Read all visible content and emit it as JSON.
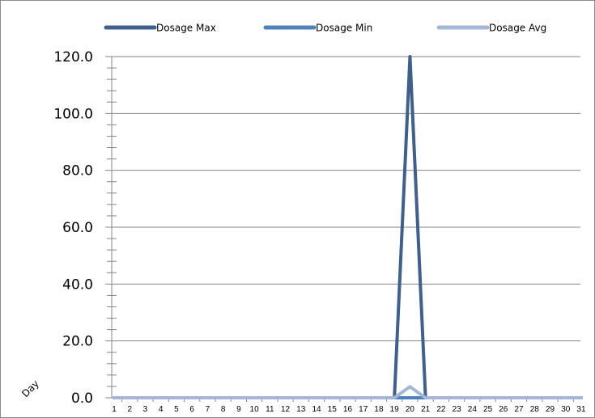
{
  "chart_data": {
    "type": "line",
    "title": "",
    "xlabel": "Day",
    "ylabel": "",
    "x": [
      1,
      2,
      3,
      4,
      5,
      6,
      7,
      8,
      9,
      10,
      11,
      12,
      13,
      14,
      15,
      16,
      17,
      18,
      19,
      20,
      21,
      22,
      23,
      24,
      25,
      26,
      27,
      28,
      29,
      30,
      31
    ],
    "x_tick_labels": [
      "1",
      "2",
      "3",
      "4",
      "5",
      "6",
      "7",
      "8",
      "9",
      "10",
      "11",
      "12",
      "13",
      "14",
      "15",
      "16",
      "17",
      "18",
      "19",
      "20",
      "21",
      "22",
      "23",
      "24",
      "25",
      "26",
      "27",
      "28",
      "29",
      "30",
      "31"
    ],
    "y_tick_labels": [
      "0.0",
      "20.0",
      "40.0",
      "60.0",
      "80.0",
      "100.0",
      "120.0"
    ],
    "ylim": [
      0,
      120
    ],
    "y_major_step": 20,
    "y_minor_step": 4,
    "grid": true,
    "legend_position": "top",
    "series": [
      {
        "name": "Dosage Max",
        "color": "#3f5f8f",
        "values": [
          0,
          0,
          0,
          0,
          0,
          0,
          0,
          0,
          0,
          0,
          0,
          0,
          0,
          0,
          0,
          0,
          0,
          0,
          0,
          120,
          0,
          0,
          0,
          0,
          0,
          0,
          0,
          0,
          0,
          0,
          0
        ]
      },
      {
        "name": "Dosage Min",
        "color": "#4f81bd",
        "values": [
          0,
          0,
          0,
          0,
          0,
          0,
          0,
          0,
          0,
          0,
          0,
          0,
          0,
          0,
          0,
          0,
          0,
          0,
          0,
          0,
          0,
          0,
          0,
          0,
          0,
          0,
          0,
          0,
          0,
          0,
          0
        ]
      },
      {
        "name": "Dosage Avg",
        "color": "#a4b6d8",
        "values": [
          0,
          0,
          0,
          0,
          0,
          0,
          0,
          0,
          0,
          0,
          0,
          0,
          0,
          0,
          0,
          0,
          0,
          0,
          0,
          3.9,
          0,
          0,
          0,
          0,
          0,
          0,
          0,
          0,
          0,
          0,
          0
        ]
      }
    ]
  }
}
